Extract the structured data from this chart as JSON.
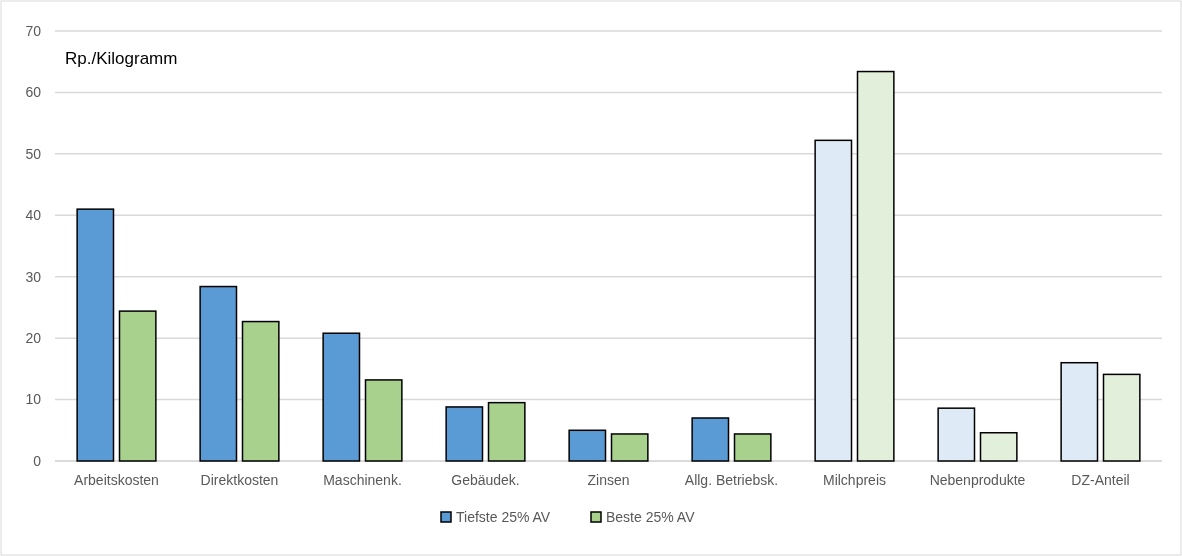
{
  "chart_data": {
    "type": "bar",
    "ylabel": "Rp./Kilogramm",
    "categories": [
      "Arbeitskosten",
      "Direktkosten",
      "Maschinenk.",
      "Gebäudek.",
      "Zinsen",
      "Allg. Betriebsk.",
      "Milchpreis",
      "Nebenprodukte",
      "DZ-Anteil"
    ],
    "series": [
      {
        "name": "Tiefste 25% AV",
        "color": "#5b9bd5",
        "colors": [
          "#5b9bd5",
          "#5b9bd5",
          "#5b9bd5",
          "#5b9bd5",
          "#5b9bd5",
          "#5b9bd5",
          "#deebf7",
          "#deebf7",
          "#deebf7"
        ],
        "values": [
          41.0,
          28.4,
          20.8,
          8.8,
          5.0,
          7.0,
          52.2,
          8.6,
          16.0
        ]
      },
      {
        "name": "Beste 25% AV",
        "color": "#a9d18e",
        "colors": [
          "#a9d18e",
          "#a9d18e",
          "#a9d18e",
          "#a9d18e",
          "#a9d18e",
          "#a9d18e",
          "#e2efda",
          "#e2efda",
          "#e2efda"
        ],
        "values": [
          24.4,
          22.7,
          13.2,
          9.5,
          4.4,
          4.4,
          63.4,
          4.6,
          14.1
        ]
      }
    ],
    "ylim": [
      0,
      70
    ],
    "yticks": [
      0,
      10,
      20,
      30,
      40,
      50,
      60,
      70
    ],
    "grid": "y",
    "legend": "bottom"
  }
}
